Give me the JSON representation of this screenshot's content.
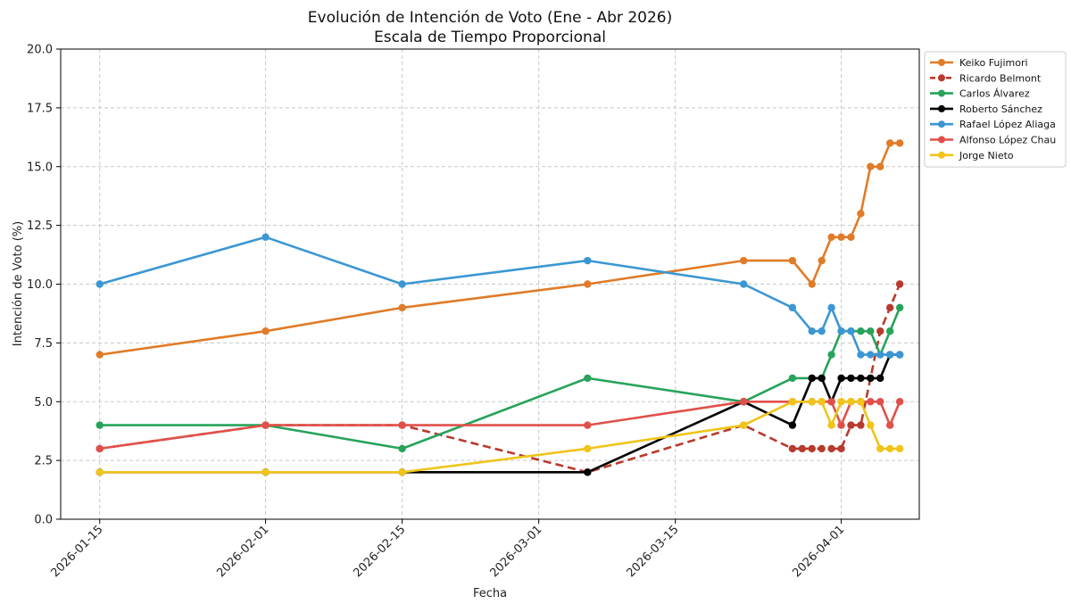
{
  "chart_data": {
    "type": "line",
    "title": "Evolución de Intención de Voto (Ene - Abr 2026)",
    "subtitle": "Escala de Tiempo Proporcional",
    "xlabel": "Fecha",
    "ylabel": "Intención de Voto (%)",
    "xlim": [
      "2026-01-11",
      "2026-04-09"
    ],
    "ylim": [
      0,
      20
    ],
    "x_ticks": [
      "2026-01-15",
      "2026-02-01",
      "2026-02-15",
      "2026-03-01",
      "2026-03-15",
      "2026-04-01"
    ],
    "y_ticks": [
      "0.0",
      "2.5",
      "5.0",
      "7.5",
      "10.0",
      "12.5",
      "15.0",
      "17.5",
      "20.0"
    ],
    "grid": true,
    "legend_position": "outside-top-right",
    "series": [
      {
        "name": "Keiko Fujimori",
        "color": "#e07b28",
        "dashed": false,
        "points": [
          [
            "2026-01-15",
            7
          ],
          [
            "2026-02-01",
            8
          ],
          [
            "2026-02-15",
            9
          ],
          [
            "2026-03-06",
            10
          ],
          [
            "2026-03-22",
            11
          ],
          [
            "2026-03-27",
            11
          ],
          [
            "2026-03-29",
            10
          ],
          [
            "2026-03-30",
            11
          ],
          [
            "2026-03-31",
            12
          ],
          [
            "2026-04-01",
            12
          ],
          [
            "2026-04-02",
            12
          ],
          [
            "2026-04-03",
            13
          ],
          [
            "2026-04-04",
            15
          ],
          [
            "2026-04-05",
            15
          ],
          [
            "2026-04-06",
            16
          ],
          [
            "2026-04-07",
            16
          ]
        ]
      },
      {
        "name": "Ricardo Belmont",
        "color": "#b83a2c",
        "dashed": true,
        "points": [
          [
            "2026-01-15",
            3
          ],
          [
            "2026-02-01",
            4
          ],
          [
            "2026-02-15",
            4
          ],
          [
            "2026-03-06",
            2
          ],
          [
            "2026-03-22",
            4
          ],
          [
            "2026-03-27",
            3
          ],
          [
            "2026-03-28",
            3
          ],
          [
            "2026-03-29",
            3
          ],
          [
            "2026-03-30",
            3
          ],
          [
            "2026-03-31",
            3
          ],
          [
            "2026-04-01",
            3
          ],
          [
            "2026-04-02",
            4
          ],
          [
            "2026-04-03",
            4
          ],
          [
            "2026-04-04",
            6
          ],
          [
            "2026-04-05",
            8
          ],
          [
            "2026-04-06",
            9
          ],
          [
            "2026-04-07",
            10
          ]
        ]
      },
      {
        "name": "Carlos Álvarez",
        "color": "#27a35a",
        "dashed": false,
        "points": [
          [
            "2026-01-15",
            4
          ],
          [
            "2026-02-01",
            4
          ],
          [
            "2026-02-15",
            3
          ],
          [
            "2026-03-06",
            6
          ],
          [
            "2026-03-22",
            5
          ],
          [
            "2026-03-27",
            6
          ],
          [
            "2026-03-29",
            6
          ],
          [
            "2026-03-30",
            6
          ],
          [
            "2026-03-31",
            7
          ],
          [
            "2026-04-01",
            8
          ],
          [
            "2026-04-02",
            8
          ],
          [
            "2026-04-03",
            8
          ],
          [
            "2026-04-04",
            8
          ],
          [
            "2026-04-05",
            7
          ],
          [
            "2026-04-06",
            8
          ],
          [
            "2026-04-07",
            9
          ]
        ]
      },
      {
        "name": "Roberto Sánchez",
        "color": "#000000",
        "dashed": false,
        "points": [
          [
            "2026-01-15",
            2
          ],
          [
            "2026-02-01",
            2
          ],
          [
            "2026-02-15",
            2
          ],
          [
            "2026-03-06",
            2
          ],
          [
            "2026-03-22",
            5
          ],
          [
            "2026-03-27",
            4
          ],
          [
            "2026-03-29",
            6
          ],
          [
            "2026-03-30",
            6
          ],
          [
            "2026-03-31",
            5
          ],
          [
            "2026-04-01",
            6
          ],
          [
            "2026-04-02",
            6
          ],
          [
            "2026-04-03",
            6
          ],
          [
            "2026-04-04",
            6
          ],
          [
            "2026-04-05",
            6
          ],
          [
            "2026-04-06",
            7
          ],
          [
            "2026-04-07",
            7
          ]
        ]
      },
      {
        "name": "Rafael López Aliaga",
        "color": "#3b97d3",
        "dashed": false,
        "points": [
          [
            "2026-01-15",
            10
          ],
          [
            "2026-02-01",
            12
          ],
          [
            "2026-02-15",
            10
          ],
          [
            "2026-03-06",
            11
          ],
          [
            "2026-03-22",
            10
          ],
          [
            "2026-03-27",
            9
          ],
          [
            "2026-03-29",
            8
          ],
          [
            "2026-03-30",
            8
          ],
          [
            "2026-03-31",
            9
          ],
          [
            "2026-04-01",
            8
          ],
          [
            "2026-04-02",
            8
          ],
          [
            "2026-04-03",
            7
          ],
          [
            "2026-04-04",
            7
          ],
          [
            "2026-04-05",
            7
          ],
          [
            "2026-04-06",
            7
          ],
          [
            "2026-04-07",
            7
          ]
        ]
      },
      {
        "name": "Alfonso López Chau",
        "color": "#e0504a",
        "dashed": false,
        "points": [
          [
            "2026-01-15",
            3
          ],
          [
            "2026-02-01",
            4
          ],
          [
            "2026-02-15",
            4
          ],
          [
            "2026-03-06",
            4
          ],
          [
            "2026-03-22",
            5
          ],
          [
            "2026-03-27",
            5
          ],
          [
            "2026-03-29",
            5
          ],
          [
            "2026-03-30",
            5
          ],
          [
            "2026-03-31",
            5
          ],
          [
            "2026-04-01",
            4
          ],
          [
            "2026-04-02",
            5
          ],
          [
            "2026-04-03",
            5
          ],
          [
            "2026-04-04",
            5
          ],
          [
            "2026-04-05",
            5
          ],
          [
            "2026-04-06",
            4
          ],
          [
            "2026-04-07",
            5
          ]
        ]
      },
      {
        "name": "Jorge Nieto",
        "color": "#f0c419",
        "dashed": false,
        "points": [
          [
            "2026-01-15",
            2
          ],
          [
            "2026-02-01",
            2
          ],
          [
            "2026-02-15",
            2
          ],
          [
            "2026-03-06",
            3
          ],
          [
            "2026-03-22",
            4
          ],
          [
            "2026-03-27",
            5
          ],
          [
            "2026-03-29",
            5
          ],
          [
            "2026-03-30",
            5
          ],
          [
            "2026-03-31",
            4
          ],
          [
            "2026-04-01",
            5
          ],
          [
            "2026-04-02",
            5
          ],
          [
            "2026-04-03",
            5
          ],
          [
            "2026-04-04",
            4
          ],
          [
            "2026-04-05",
            3
          ],
          [
            "2026-04-06",
            3
          ],
          [
            "2026-04-07",
            3
          ]
        ]
      }
    ]
  }
}
